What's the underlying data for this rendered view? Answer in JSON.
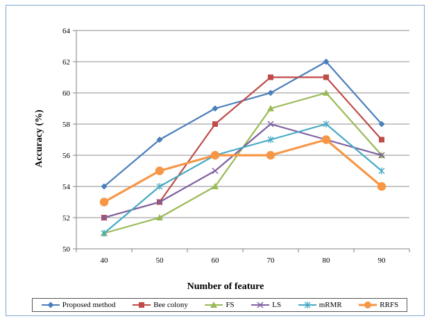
{
  "chart_data": {
    "type": "line",
    "title": "",
    "xlabel": "Number of feature",
    "ylabel": "Accuracy (%)",
    "x": [
      40,
      50,
      60,
      70,
      80,
      90
    ],
    "ylim": [
      50,
      64
    ],
    "yticks": [
      50,
      52,
      54,
      56,
      58,
      60,
      62,
      64
    ],
    "grid": "horizontal",
    "legend_position": "bottom",
    "series": [
      {
        "name": "Proposed method",
        "values": [
          54,
          57,
          59,
          60,
          62,
          58
        ],
        "color": "#4a7ebb",
        "marker": "diamond"
      },
      {
        "name": "Bee colony",
        "values": [
          52,
          53,
          58,
          61,
          61,
          57
        ],
        "color": "#be4b48",
        "marker": "square"
      },
      {
        "name": "FS",
        "values": [
          51,
          52,
          54,
          59,
          60,
          56
        ],
        "color": "#98b954",
        "marker": "triangle"
      },
      {
        "name": "LS",
        "values": [
          52,
          53,
          55,
          58,
          57,
          56
        ],
        "color": "#7d60a0",
        "marker": "x"
      },
      {
        "name": "mRMR",
        "values": [
          51,
          54,
          56,
          57,
          58,
          55
        ],
        "color": "#46aac5",
        "marker": "star"
      },
      {
        "name": "RRFS",
        "values": [
          53,
          55,
          56,
          56,
          57,
          54
        ],
        "color": "#f79646",
        "marker": "circle"
      }
    ]
  }
}
